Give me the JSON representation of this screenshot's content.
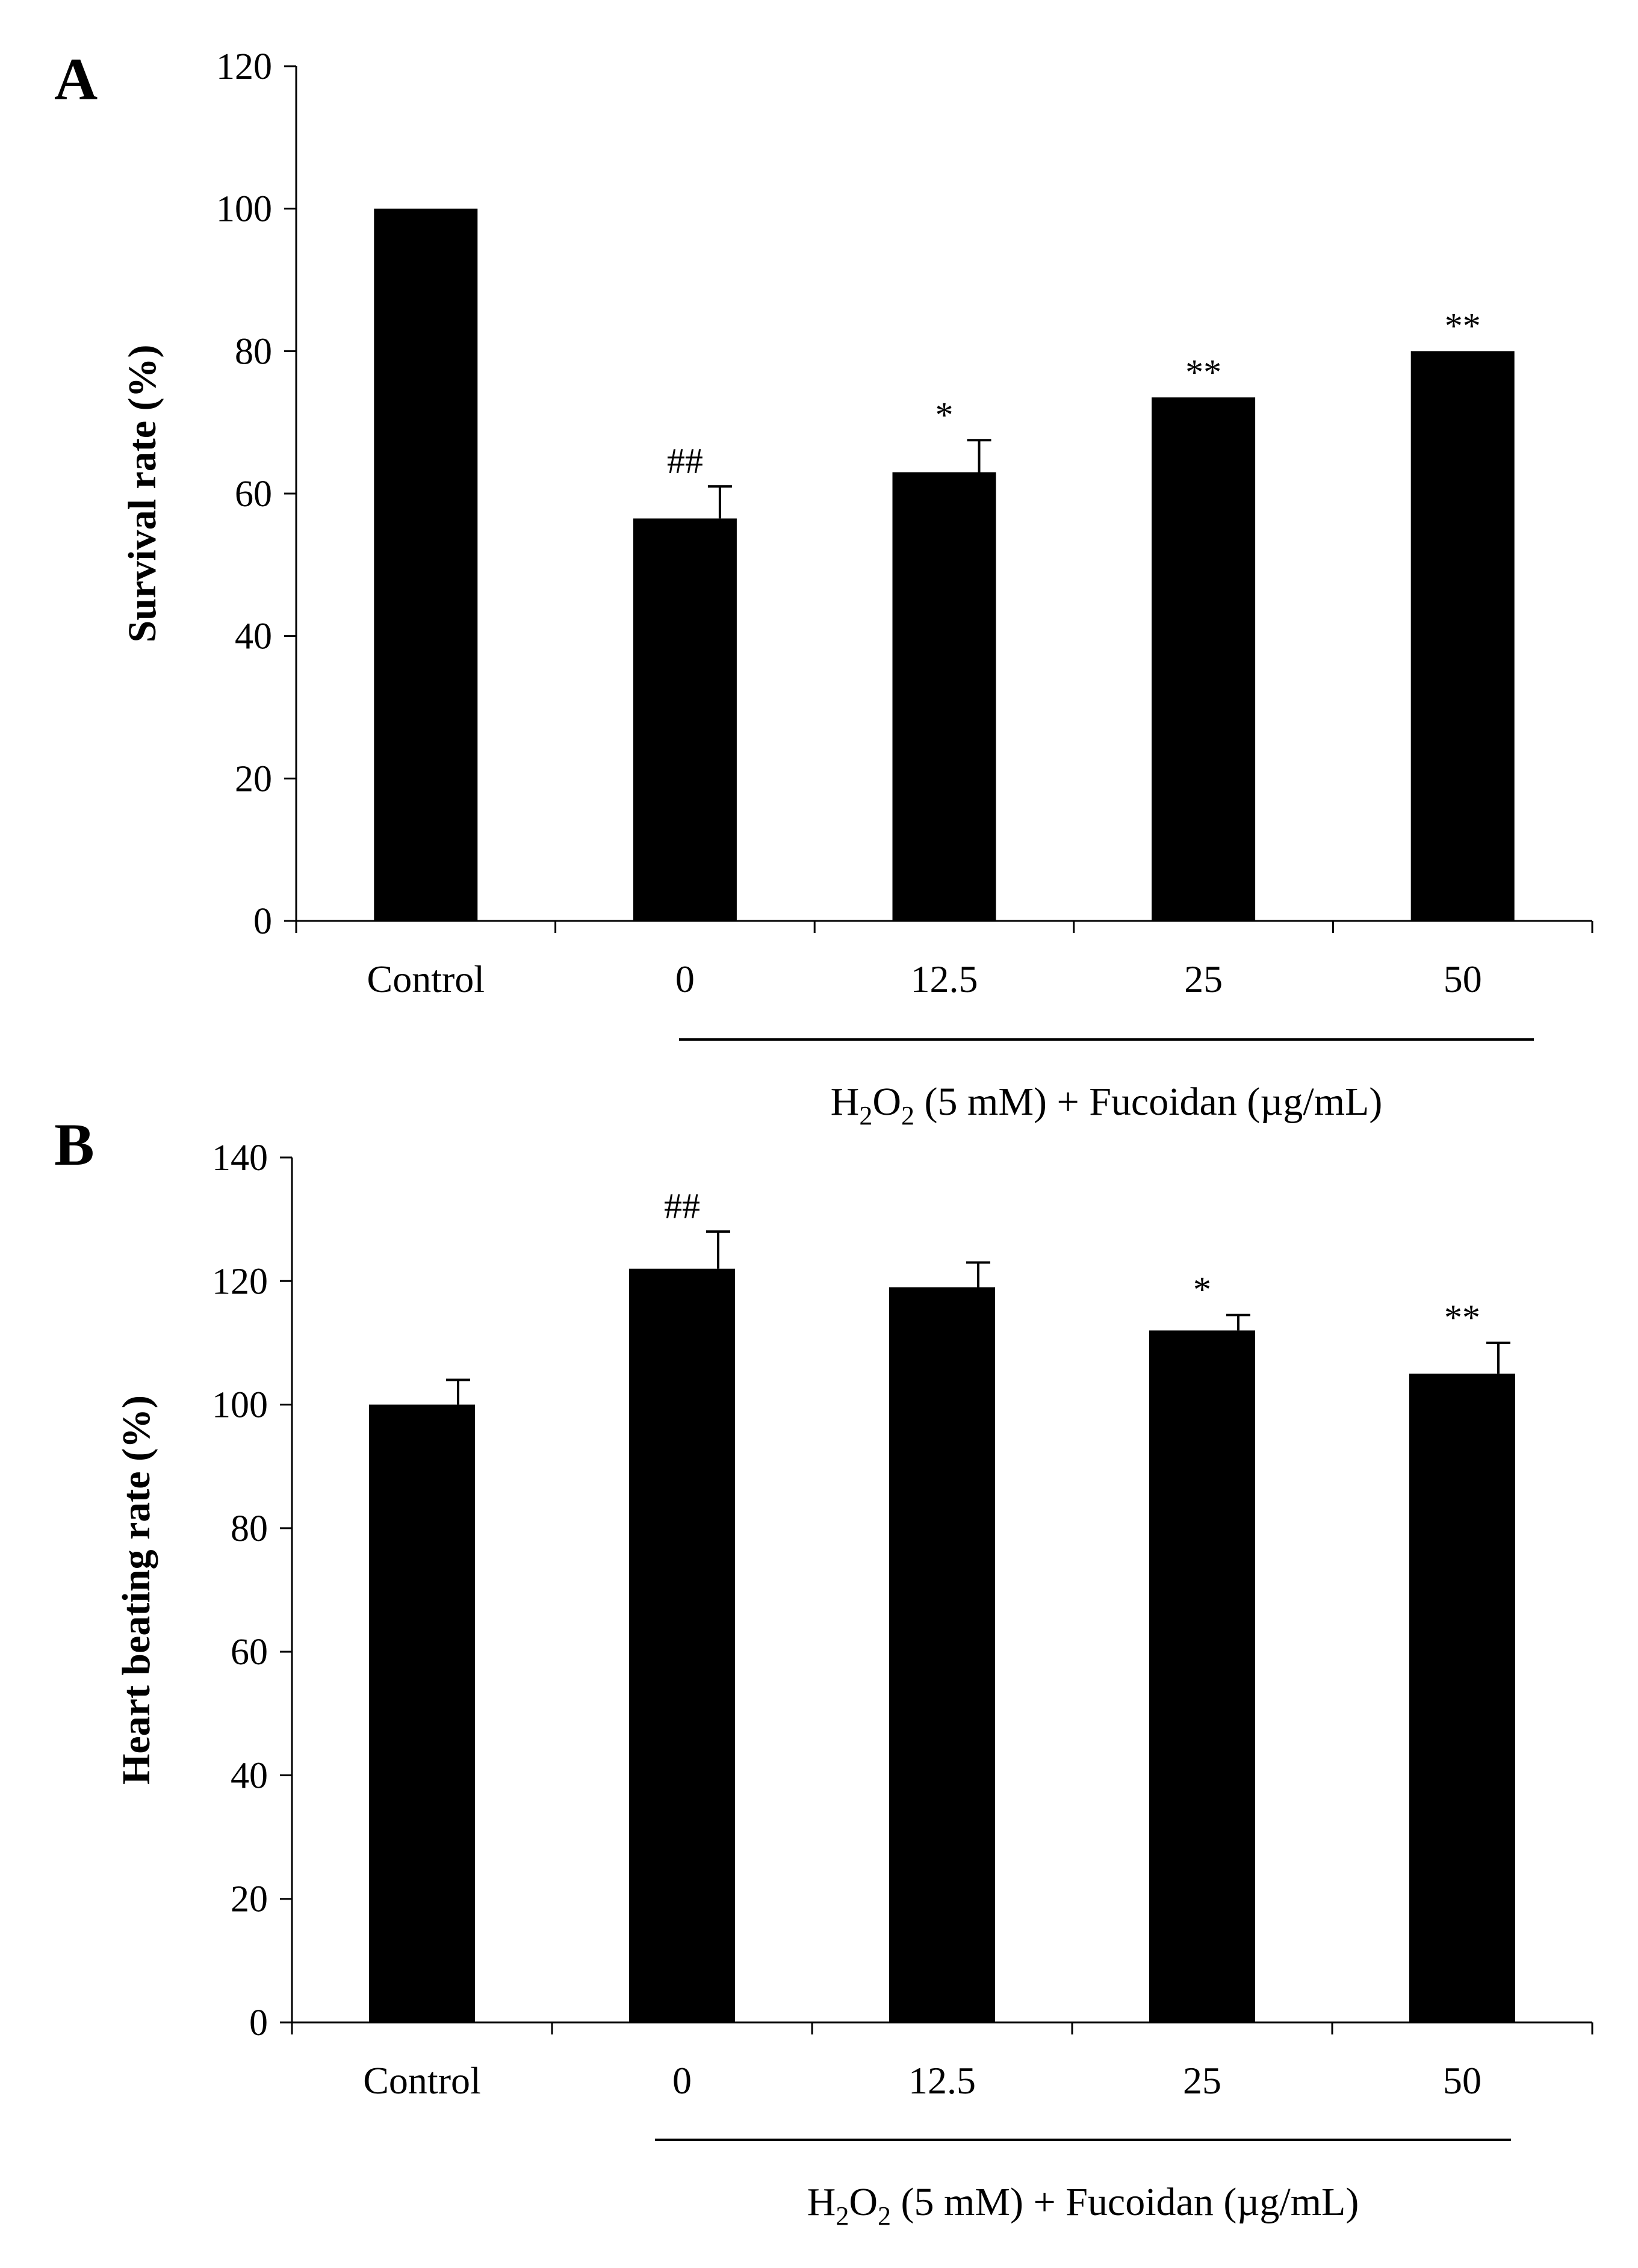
{
  "chart_data": [
    {
      "type": "bar",
      "panel": "A",
      "ylabel": "Survival rate (%)",
      "ylim": [
        0,
        120
      ],
      "yticks": [
        0,
        20,
        40,
        60,
        80,
        100,
        120
      ],
      "categories": [
        "Control",
        "0",
        "12.5",
        "25",
        "50"
      ],
      "values": [
        100,
        56.5,
        63,
        73.5,
        80
      ],
      "errors": [
        0,
        4.5,
        4.5,
        0,
        0
      ],
      "significance": [
        "",
        "##",
        "*",
        "**",
        "**"
      ],
      "group_label": {
        "prefix": "H",
        "sub1": "2",
        "mid": "O",
        "sub2": "2",
        "rest": " (5 mM) + Fucoidan (µg/mL)"
      },
      "grid": false,
      "colors": {
        "bar": "#000000"
      }
    },
    {
      "type": "bar",
      "panel": "B",
      "ylabel": "Heart beating rate (%)",
      "ylim": [
        0,
        140
      ],
      "yticks": [
        0,
        20,
        40,
        60,
        80,
        100,
        120,
        140
      ],
      "categories": [
        "Control",
        "0",
        "12.5",
        "25",
        "50"
      ],
      "values": [
        100,
        122,
        119,
        112,
        105
      ],
      "errors": [
        4,
        6,
        4,
        2.5,
        5
      ],
      "significance": [
        "",
        "##",
        "",
        "*",
        "**"
      ],
      "group_label": {
        "prefix": "H",
        "sub1": "2",
        "mid": "O",
        "sub2": "2",
        "rest": " (5 mM) + Fucoidan (µg/mL)"
      },
      "grid": false,
      "colors": {
        "bar": "#000000"
      }
    }
  ]
}
